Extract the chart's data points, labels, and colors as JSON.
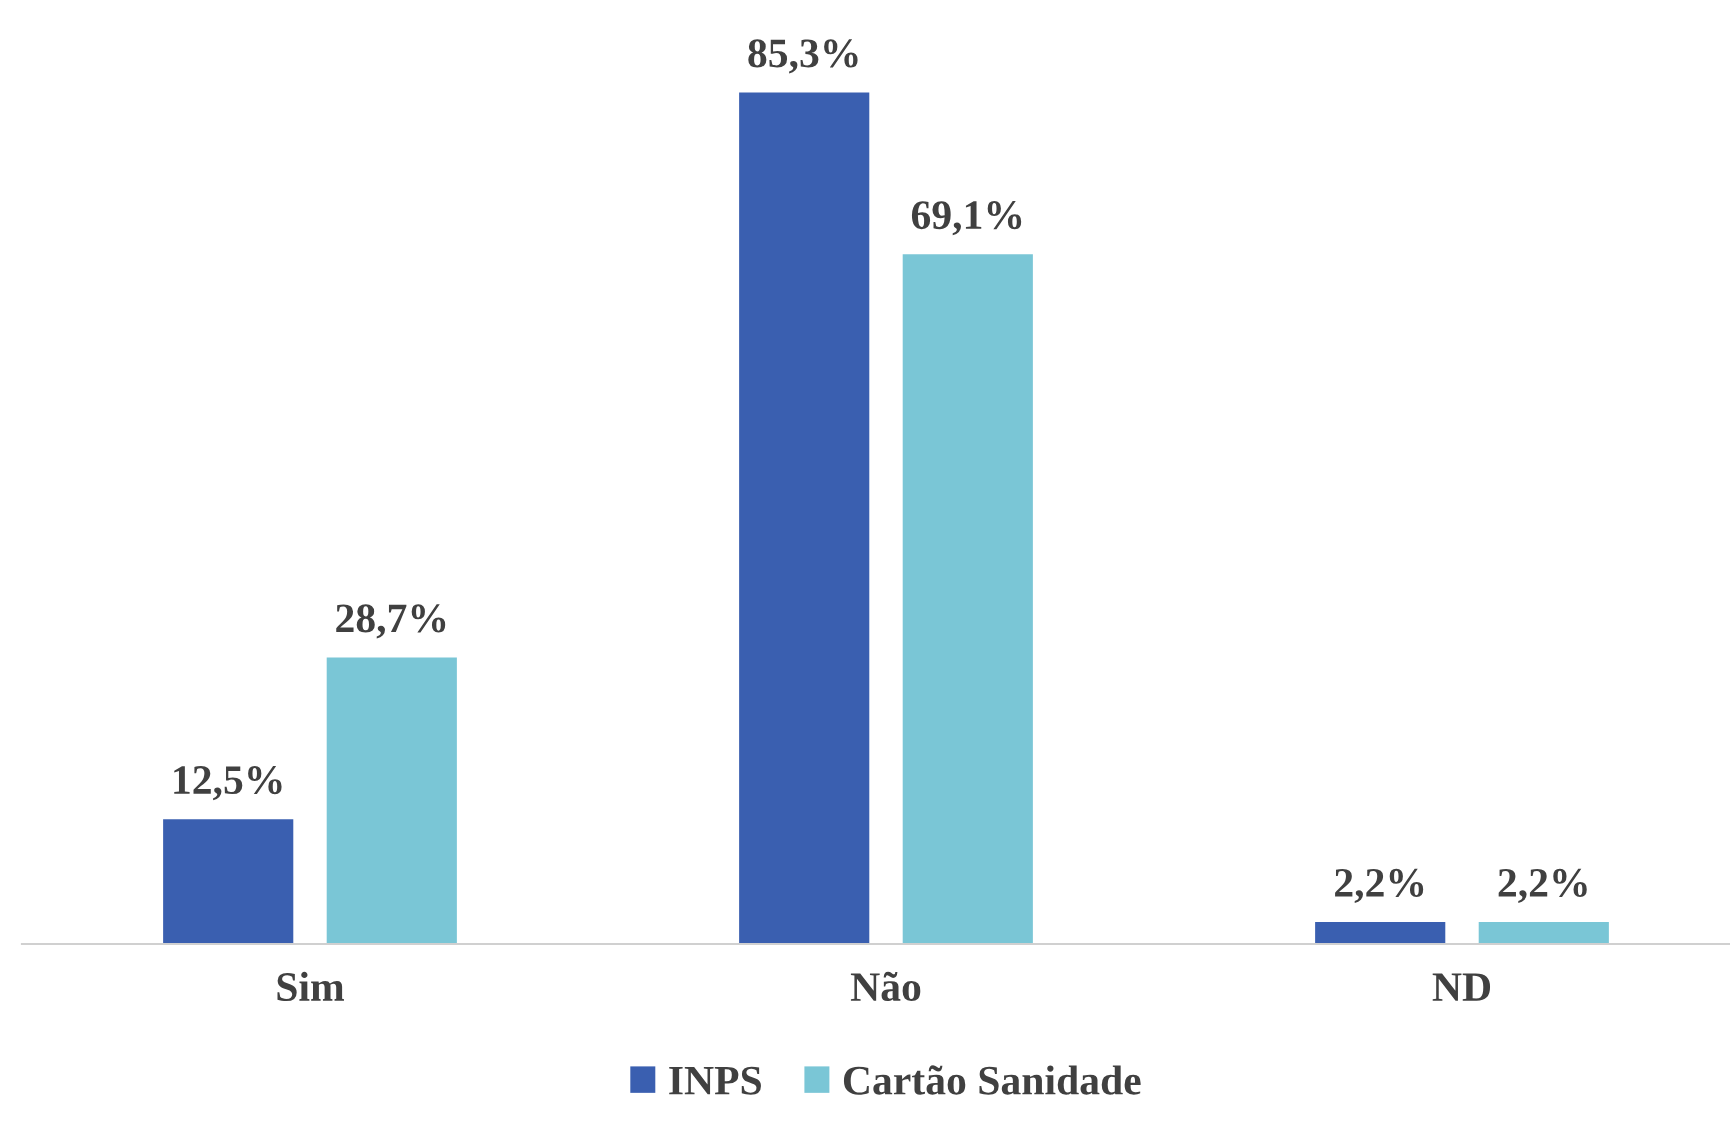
{
  "chart_data": {
    "type": "bar",
    "categories": [
      "Sim",
      "Não",
      "ND"
    ],
    "series": [
      {
        "name": "INPS",
        "color": "#3a5fb0",
        "values": [
          12.5,
          85.3,
          2.2
        ],
        "value_labels": [
          "12,5%",
          "85,3%",
          "2,2%"
        ]
      },
      {
        "name": "Cartão Sanidade",
        "color": "#7ac6d6",
        "values": [
          28.7,
          69.1,
          2.2
        ],
        "value_labels": [
          "28,7%",
          "69,1%",
          "2,2%"
        ]
      }
    ],
    "relative": false,
    "grid": false,
    "legend": "bottom"
  }
}
